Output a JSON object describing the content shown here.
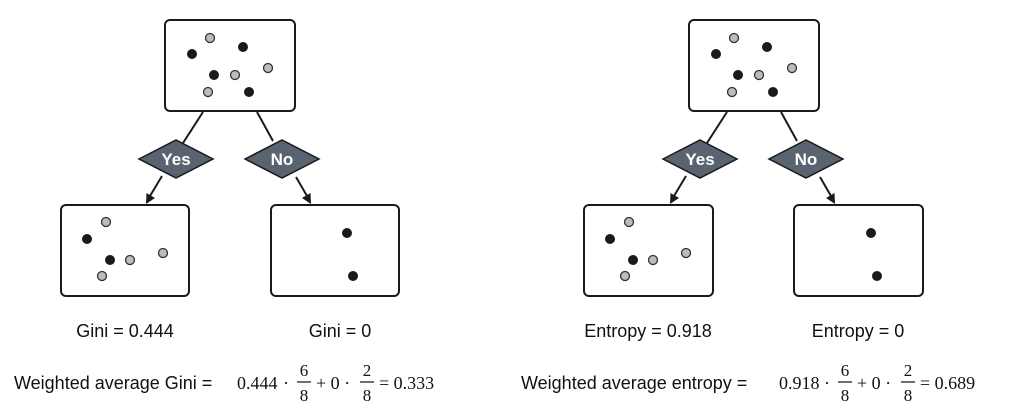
{
  "colors": {
    "dark_dot": "#1a1a1a",
    "light_dot": "#bdbdb2",
    "decision": "#5a6470"
  },
  "left_panel": {
    "yes_label": "Yes",
    "no_label": "No",
    "left_caption": "Gini = 0.444",
    "right_caption": "Gini = 0",
    "weighted_label": "Weighted average Gini =",
    "weighted_value": "0.444",
    "right_value": "= 0.333"
  },
  "right_panel": {
    "yes_label": "Yes",
    "no_label": "No",
    "left_caption": "Entropy = 0.918",
    "right_caption": "Entropy = 0",
    "weighted_label": "Weighted average entropy =",
    "weighted_value": "0.918",
    "right_value": "= 0.689"
  },
  "formula": {
    "dot_op": "·",
    "plus_zero": "+ 0 ·",
    "frac1_num": "6",
    "frac1_den": "8",
    "frac2_num": "2",
    "frac2_den": "8"
  }
}
